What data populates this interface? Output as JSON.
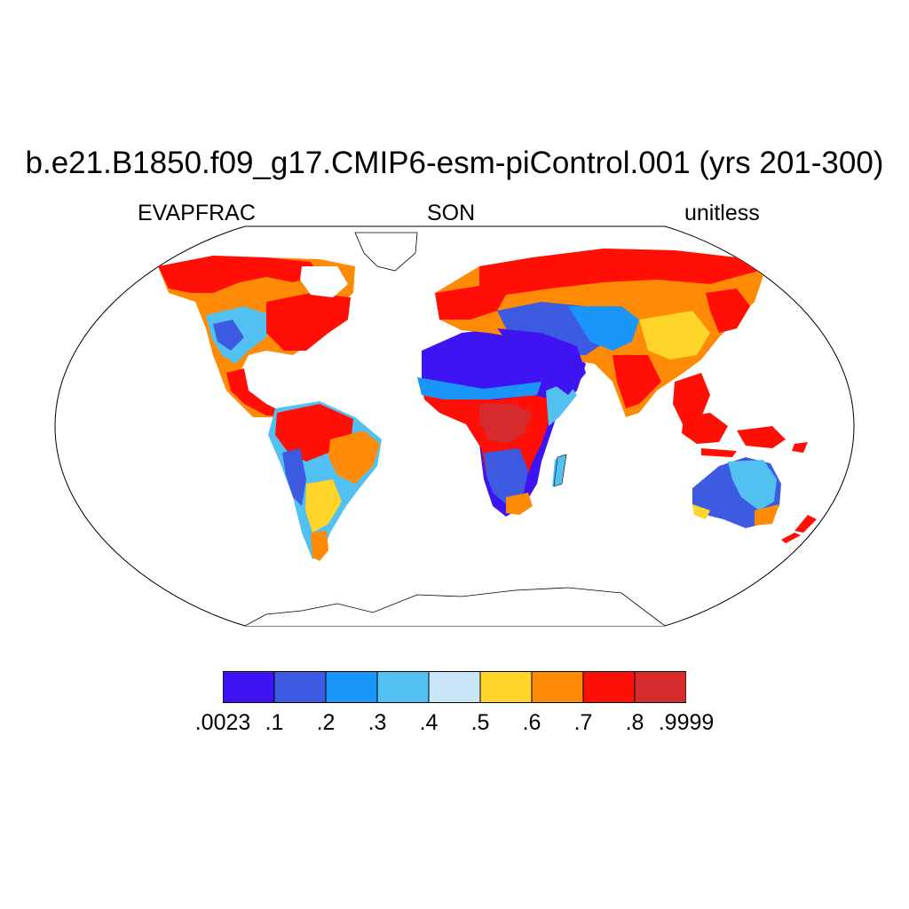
{
  "header": {
    "title": "b.e21.B1850.f09_g17.CMIP6-esm-piControl.001 (yrs 201-300)",
    "left_label": "EVAPFRAC",
    "center_label": "SON",
    "right_label": "unitless"
  },
  "map": {
    "projection": "Robinson",
    "coastlines": true,
    "ocean_color": "#ffffff"
  },
  "colorbar": {
    "colors": [
      "#3f14f2",
      "#3c5be0",
      "#1a96fa",
      "#52c1f2",
      "#c8e6f7",
      "#ffd52a",
      "#ff8a06",
      "#ff0f05",
      "#d62a2c"
    ],
    "labels": [
      ".0023",
      ".1",
      ".2",
      ".3",
      ".4",
      ".5",
      ".6",
      ".7",
      ".8",
      ".9999"
    ]
  }
}
